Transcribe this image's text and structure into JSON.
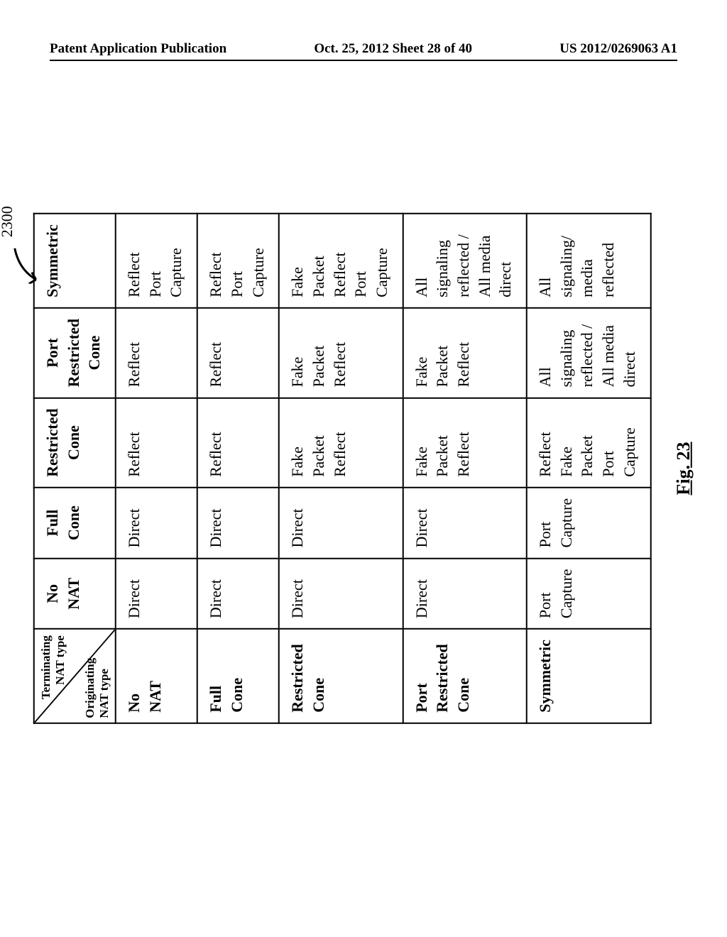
{
  "header": {
    "left": "Patent Application Publication",
    "center": "Oct. 25, 2012  Sheet 28 of 40",
    "right": "US 2012/0269063 A1"
  },
  "figure": {
    "ref_number": "2300",
    "caption": "Fig. 23",
    "corner": {
      "top": "Terminating NAT type",
      "bottom": "Originating NAT type"
    },
    "columns": [
      "No NAT",
      "Full Cone",
      "Restricted Cone",
      "Port Restricted Cone",
      "Symmetric"
    ],
    "rows": [
      {
        "label": "No NAT",
        "cells": [
          [
            "Direct"
          ],
          [
            "Direct"
          ],
          [
            "Reflect"
          ],
          [
            "Reflect"
          ],
          [
            "Reflect",
            "Port Capture"
          ]
        ]
      },
      {
        "label": "Full Cone",
        "cells": [
          [
            "Direct"
          ],
          [
            "Direct"
          ],
          [
            "Reflect"
          ],
          [
            "Reflect"
          ],
          [
            "Reflect",
            "Port Capture"
          ]
        ]
      },
      {
        "label": "Restricted Cone",
        "cells": [
          [
            "Direct"
          ],
          [
            "Direct"
          ],
          [
            "Fake Packet",
            "Reflect"
          ],
          [
            "Fake Packet",
            "Reflect"
          ],
          [
            "Fake Packet",
            "Reflect",
            "Port Capture"
          ]
        ]
      },
      {
        "label": "Port Restricted Cone",
        "cells": [
          [
            "Direct"
          ],
          [
            "Direct"
          ],
          [
            "Fake Packet",
            "Reflect"
          ],
          [
            "Fake Packet",
            "Reflect"
          ],
          [
            "All signaling reflected / All media direct"
          ]
        ]
      },
      {
        "label": "Symmetric",
        "cells": [
          [
            "Port Capture"
          ],
          [
            "Port Capture"
          ],
          [
            "Reflect",
            "Fake Packet",
            "Port Capture"
          ],
          [
            "All signaling reflected / All media direct"
          ],
          [
            "All signaling/ media reflected"
          ]
        ]
      }
    ]
  }
}
